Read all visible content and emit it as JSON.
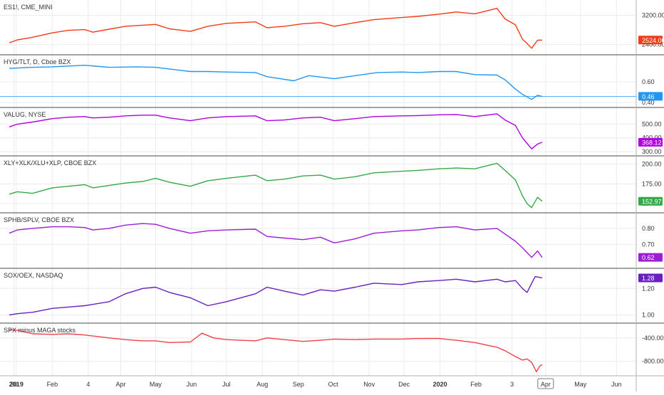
{
  "colors": {
    "background": "#ffffff",
    "grid": "#ececec",
    "divider": "#4a4a4a",
    "axis_text": "#333333"
  },
  "x_axis": {
    "ticks": [
      {
        "label": "30",
        "date": "2018-12-30"
      },
      {
        "label": "2019",
        "date": "2019-01-01",
        "bold": true
      },
      {
        "label": "Feb",
        "date": "2019-02-01"
      },
      {
        "label": "4",
        "date": "2019-03-04"
      },
      {
        "label": "Apr",
        "date": "2019-04-01"
      },
      {
        "label": "May",
        "date": "2019-05-01"
      },
      {
        "label": "Jun",
        "date": "2019-06-01"
      },
      {
        "label": "Jul",
        "date": "2019-07-01"
      },
      {
        "label": "Aug",
        "date": "2019-08-01"
      },
      {
        "label": "Sep",
        "date": "2019-09-01"
      },
      {
        "label": "Oct",
        "date": "2019-10-01"
      },
      {
        "label": "Nov",
        "date": "2019-11-01"
      },
      {
        "label": "Dec",
        "date": "2019-12-01"
      },
      {
        "label": "2020",
        "date": "2020-01-01",
        "bold": true
      },
      {
        "label": "Feb",
        "date": "2020-02-01"
      },
      {
        "label": "3",
        "date": "2020-03-03"
      },
      {
        "label": "Apr",
        "date": "2020-04-01",
        "boxed": true
      },
      {
        "label": "May",
        "date": "2020-05-01"
      },
      {
        "label": "Jun",
        "date": "2020-06-01"
      }
    ]
  },
  "chart_data": [
    {
      "type": "line",
      "title": "ES1!, CME_MINI",
      "color": "#f23c16",
      "y_ticks": [
        {
          "value": 3200,
          "label": "3200.00"
        },
        {
          "value": 2400,
          "label": "2400.00"
        }
      ],
      "ylim": [
        2200,
        3500
      ],
      "last_value": 2524,
      "last_label": "2524.00",
      "points": [
        [
          "2018-12-26",
          2450
        ],
        [
          "2019-01-02",
          2530
        ],
        [
          "2019-01-15",
          2600
        ],
        [
          "2019-02-01",
          2720
        ],
        [
          "2019-02-15",
          2790
        ],
        [
          "2019-03-01",
          2810
        ],
        [
          "2019-03-08",
          2740
        ],
        [
          "2019-03-22",
          2820
        ],
        [
          "2019-04-05",
          2900
        ],
        [
          "2019-04-20",
          2930
        ],
        [
          "2019-05-01",
          2950
        ],
        [
          "2019-05-13",
          2830
        ],
        [
          "2019-05-31",
          2760
        ],
        [
          "2019-06-15",
          2900
        ],
        [
          "2019-07-01",
          2980
        ],
        [
          "2019-07-26",
          3020
        ],
        [
          "2019-08-05",
          2860
        ],
        [
          "2019-08-20",
          2900
        ],
        [
          "2019-09-05",
          2970
        ],
        [
          "2019-09-20",
          3000
        ],
        [
          "2019-10-02",
          2900
        ],
        [
          "2019-10-20",
          3000
        ],
        [
          "2019-11-05",
          3080
        ],
        [
          "2019-11-29",
          3140
        ],
        [
          "2019-12-13",
          3170
        ],
        [
          "2019-12-31",
          3230
        ],
        [
          "2020-01-15",
          3290
        ],
        [
          "2020-01-31",
          3240
        ],
        [
          "2020-02-19",
          3390
        ],
        [
          "2020-02-26",
          3100
        ],
        [
          "2020-03-06",
          2940
        ],
        [
          "2020-03-12",
          2550
        ],
        [
          "2020-03-16",
          2430
        ],
        [
          "2020-03-20",
          2300
        ],
        [
          "2020-03-25",
          2520
        ],
        [
          "2020-03-29",
          2524
        ]
      ]
    },
    {
      "type": "line",
      "title": "HYG/TLT, D, Cboe BZX",
      "color": "#2196f3",
      "y_ticks": [
        {
          "value": 0.6,
          "label": "0.60"
        },
        {
          "value": 0.4,
          "label": "0.40"
        }
      ],
      "ylim": [
        0.38,
        0.82
      ],
      "last_value": 0.46,
      "last_label": "0.46",
      "hline": 0.46,
      "points": [
        [
          "2018-12-26",
          0.73
        ],
        [
          "2019-01-15",
          0.74
        ],
        [
          "2019-02-01",
          0.745
        ],
        [
          "2019-03-01",
          0.76
        ],
        [
          "2019-03-22",
          0.74
        ],
        [
          "2019-04-15",
          0.745
        ],
        [
          "2019-05-01",
          0.74
        ],
        [
          "2019-05-31",
          0.7
        ],
        [
          "2019-06-15",
          0.7
        ],
        [
          "2019-07-01",
          0.695
        ],
        [
          "2019-07-26",
          0.69
        ],
        [
          "2019-08-05",
          0.65
        ],
        [
          "2019-08-28",
          0.61
        ],
        [
          "2019-09-10",
          0.66
        ],
        [
          "2019-10-02",
          0.63
        ],
        [
          "2019-10-20",
          0.66
        ],
        [
          "2019-11-08",
          0.69
        ],
        [
          "2019-11-29",
          0.695
        ],
        [
          "2019-12-13",
          0.69
        ],
        [
          "2019-12-31",
          0.7
        ],
        [
          "2020-01-15",
          0.7
        ],
        [
          "2020-01-31",
          0.67
        ],
        [
          "2020-02-19",
          0.665
        ],
        [
          "2020-02-26",
          0.62
        ],
        [
          "2020-03-06",
          0.53
        ],
        [
          "2020-03-12",
          0.48
        ],
        [
          "2020-03-20",
          0.43
        ],
        [
          "2020-03-25",
          0.47
        ],
        [
          "2020-03-29",
          0.46
        ]
      ]
    },
    {
      "type": "line",
      "title": "VALUG, NYSE",
      "color": "#b000e0",
      "y_ticks": [
        {
          "value": 500,
          "label": "500.00"
        },
        {
          "value": 400,
          "label": "400.00"
        },
        {
          "value": 300,
          "label": "300.00"
        }
      ],
      "ylim": [
        290,
        590
      ],
      "last_value": 368.12,
      "last_label": "368.12",
      "points": [
        [
          "2018-12-26",
          480
        ],
        [
          "2019-01-02",
          500
        ],
        [
          "2019-01-15",
          515
        ],
        [
          "2019-02-01",
          540
        ],
        [
          "2019-02-15",
          550
        ],
        [
          "2019-03-01",
          555
        ],
        [
          "2019-03-08",
          545
        ],
        [
          "2019-03-22",
          550
        ],
        [
          "2019-04-05",
          560
        ],
        [
          "2019-04-20",
          565
        ],
        [
          "2019-05-01",
          565
        ],
        [
          "2019-05-13",
          545
        ],
        [
          "2019-05-31",
          525
        ],
        [
          "2019-06-15",
          545
        ],
        [
          "2019-07-01",
          555
        ],
        [
          "2019-07-26",
          560
        ],
        [
          "2019-08-05",
          525
        ],
        [
          "2019-08-20",
          530
        ],
        [
          "2019-09-05",
          545
        ],
        [
          "2019-09-20",
          550
        ],
        [
          "2019-10-02",
          525
        ],
        [
          "2019-10-20",
          540
        ],
        [
          "2019-11-05",
          555
        ],
        [
          "2019-11-29",
          560
        ],
        [
          "2019-12-13",
          562
        ],
        [
          "2019-12-31",
          568
        ],
        [
          "2020-01-15",
          570
        ],
        [
          "2020-01-31",
          555
        ],
        [
          "2020-02-19",
          575
        ],
        [
          "2020-02-26",
          530
        ],
        [
          "2020-03-06",
          490
        ],
        [
          "2020-03-12",
          400
        ],
        [
          "2020-03-16",
          360
        ],
        [
          "2020-03-20",
          320
        ],
        [
          "2020-03-25",
          355
        ],
        [
          "2020-03-29",
          368
        ]
      ]
    },
    {
      "type": "line",
      "title": "XLY+XLK/XLU+XLP, CBOE BZX",
      "color": "#35a84a",
      "y_ticks": [
        {
          "value": 200,
          "label": "200.00"
        },
        {
          "value": 175,
          "label": "175.00"
        },
        {
          "value": 150,
          "label": "150.00"
        }
      ],
      "ylim": [
        142,
        205
      ],
      "last_value": 152.97,
      "last_label": "152.97",
      "points": [
        [
          "2018-12-26",
          162
        ],
        [
          "2019-01-02",
          165
        ],
        [
          "2019-01-15",
          163
        ],
        [
          "2019-02-01",
          170
        ],
        [
          "2019-02-15",
          172
        ],
        [
          "2019-03-01",
          174
        ],
        [
          "2019-03-08",
          170
        ],
        [
          "2019-03-22",
          173
        ],
        [
          "2019-04-05",
          176
        ],
        [
          "2019-04-20",
          178
        ],
        [
          "2019-05-01",
          182
        ],
        [
          "2019-05-13",
          177
        ],
        [
          "2019-05-31",
          172
        ],
        [
          "2019-06-15",
          179
        ],
        [
          "2019-07-01",
          182
        ],
        [
          "2019-07-26",
          186
        ],
        [
          "2019-08-05",
          179
        ],
        [
          "2019-08-20",
          181
        ],
        [
          "2019-09-05",
          185
        ],
        [
          "2019-09-20",
          186
        ],
        [
          "2019-10-02",
          181
        ],
        [
          "2019-10-20",
          184
        ],
        [
          "2019-11-05",
          189
        ],
        [
          "2019-11-29",
          191
        ],
        [
          "2019-12-13",
          192
        ],
        [
          "2019-12-31",
          194
        ],
        [
          "2020-01-15",
          195
        ],
        [
          "2020-01-31",
          194
        ],
        [
          "2020-02-19",
          201
        ],
        [
          "2020-02-26",
          192
        ],
        [
          "2020-03-06",
          180
        ],
        [
          "2020-03-12",
          160
        ],
        [
          "2020-03-16",
          150
        ],
        [
          "2020-03-20",
          145
        ],
        [
          "2020-03-25",
          158
        ],
        [
          "2020-03-29",
          153
        ]
      ]
    },
    {
      "type": "line",
      "title": "SPHB/SPLV, CBOE BZX",
      "color": "#9c1fd6",
      "y_ticks": [
        {
          "value": 0.8,
          "label": "0.80"
        },
        {
          "value": 0.7,
          "label": "0.70"
        }
      ],
      "ylim": [
        0.57,
        0.87
      ],
      "last_value": 0.62,
      "last_label": "0.62",
      "points": [
        [
          "2018-12-26",
          0.77
        ],
        [
          "2019-01-02",
          0.79
        ],
        [
          "2019-01-15",
          0.8
        ],
        [
          "2019-02-01",
          0.81
        ],
        [
          "2019-02-15",
          0.81
        ],
        [
          "2019-03-01",
          0.805
        ],
        [
          "2019-03-08",
          0.79
        ],
        [
          "2019-03-22",
          0.8
        ],
        [
          "2019-04-05",
          0.82
        ],
        [
          "2019-04-20",
          0.83
        ],
        [
          "2019-05-01",
          0.825
        ],
        [
          "2019-05-13",
          0.8
        ],
        [
          "2019-05-31",
          0.77
        ],
        [
          "2019-06-15",
          0.785
        ],
        [
          "2019-07-01",
          0.79
        ],
        [
          "2019-07-26",
          0.795
        ],
        [
          "2019-08-05",
          0.75
        ],
        [
          "2019-08-20",
          0.74
        ],
        [
          "2019-09-05",
          0.73
        ],
        [
          "2019-09-20",
          0.745
        ],
        [
          "2019-10-02",
          0.71
        ],
        [
          "2019-10-20",
          0.735
        ],
        [
          "2019-11-05",
          0.77
        ],
        [
          "2019-11-29",
          0.785
        ],
        [
          "2019-12-13",
          0.79
        ],
        [
          "2019-12-31",
          0.805
        ],
        [
          "2020-01-15",
          0.81
        ],
        [
          "2020-01-31",
          0.79
        ],
        [
          "2020-02-19",
          0.8
        ],
        [
          "2020-02-26",
          0.765
        ],
        [
          "2020-03-06",
          0.72
        ],
        [
          "2020-03-12",
          0.68
        ],
        [
          "2020-03-16",
          0.65
        ],
        [
          "2020-03-20",
          0.62
        ],
        [
          "2020-03-25",
          0.66
        ],
        [
          "2020-03-29",
          0.62
        ]
      ]
    },
    {
      "type": "line",
      "title": "SOX/OEX, NASDAQ",
      "color": "#6a1fc0",
      "y_ticks": [
        {
          "value": 1.2,
          "label": "1.20"
        },
        {
          "value": 1.0,
          "label": "1.00"
        }
      ],
      "ylim": [
        0.96,
        1.32
      ],
      "last_value": 1.28,
      "last_label": "1.28",
      "points": [
        [
          "2018-12-26",
          1.0
        ],
        [
          "2019-01-02",
          1.01
        ],
        [
          "2019-01-15",
          1.02
        ],
        [
          "2019-02-01",
          1.05
        ],
        [
          "2019-02-15",
          1.06
        ],
        [
          "2019-03-01",
          1.07
        ],
        [
          "2019-03-22",
          1.1
        ],
        [
          "2019-04-05",
          1.16
        ],
        [
          "2019-04-20",
          1.2
        ],
        [
          "2019-05-01",
          1.21
        ],
        [
          "2019-05-13",
          1.17
        ],
        [
          "2019-05-31",
          1.13
        ],
        [
          "2019-06-15",
          1.07
        ],
        [
          "2019-07-01",
          1.1
        ],
        [
          "2019-07-26",
          1.16
        ],
        [
          "2019-08-05",
          1.21
        ],
        [
          "2019-08-20",
          1.18
        ],
        [
          "2019-09-05",
          1.15
        ],
        [
          "2019-09-20",
          1.19
        ],
        [
          "2019-10-02",
          1.18
        ],
        [
          "2019-10-20",
          1.21
        ],
        [
          "2019-11-05",
          1.24
        ],
        [
          "2019-11-29",
          1.23
        ],
        [
          "2019-12-13",
          1.25
        ],
        [
          "2019-12-31",
          1.26
        ],
        [
          "2020-01-15",
          1.27
        ],
        [
          "2020-01-31",
          1.25
        ],
        [
          "2020-02-19",
          1.27
        ],
        [
          "2020-02-26",
          1.25
        ],
        [
          "2020-03-06",
          1.26
        ],
        [
          "2020-03-12",
          1.2
        ],
        [
          "2020-03-16",
          1.17
        ],
        [
          "2020-03-20",
          1.24
        ],
        [
          "2020-03-23",
          1.29
        ],
        [
          "2020-03-29",
          1.28
        ]
      ]
    },
    {
      "type": "line",
      "title": "SPX minus MAGA stocks",
      "color": "#f0404a",
      "y_ticks": [
        {
          "value": -400,
          "label": "-400.00"
        },
        {
          "value": -800,
          "label": "-800.00"
        }
      ],
      "ylim": [
        -1000,
        -220
      ],
      "last_value": -860,
      "points": [
        [
          "2018-12-26",
          -260
        ],
        [
          "2019-01-02",
          -270
        ],
        [
          "2019-01-15",
          -330
        ],
        [
          "2019-02-01",
          -340
        ],
        [
          "2019-02-15",
          -330
        ],
        [
          "2019-03-01",
          -350
        ],
        [
          "2019-03-22",
          -400
        ],
        [
          "2019-04-05",
          -430
        ],
        [
          "2019-04-20",
          -450
        ],
        [
          "2019-05-01",
          -450
        ],
        [
          "2019-05-13",
          -480
        ],
        [
          "2019-05-31",
          -470
        ],
        [
          "2019-06-10",
          -320
        ],
        [
          "2019-06-20",
          -400
        ],
        [
          "2019-07-01",
          -430
        ],
        [
          "2019-07-26",
          -450
        ],
        [
          "2019-08-05",
          -400
        ],
        [
          "2019-08-20",
          -430
        ],
        [
          "2019-09-05",
          -460
        ],
        [
          "2019-09-20",
          -440
        ],
        [
          "2019-10-02",
          -420
        ],
        [
          "2019-10-20",
          -430
        ],
        [
          "2019-11-05",
          -420
        ],
        [
          "2019-11-29",
          -420
        ],
        [
          "2019-12-13",
          -410
        ],
        [
          "2019-12-31",
          -410
        ],
        [
          "2020-01-15",
          -440
        ],
        [
          "2020-01-31",
          -480
        ],
        [
          "2020-02-19",
          -560
        ],
        [
          "2020-02-26",
          -620
        ],
        [
          "2020-03-06",
          -720
        ],
        [
          "2020-03-12",
          -780
        ],
        [
          "2020-03-16",
          -760
        ],
        [
          "2020-03-20",
          -820
        ],
        [
          "2020-03-24",
          -980
        ],
        [
          "2020-03-27",
          -880
        ],
        [
          "2020-03-29",
          -860
        ]
      ]
    }
  ]
}
